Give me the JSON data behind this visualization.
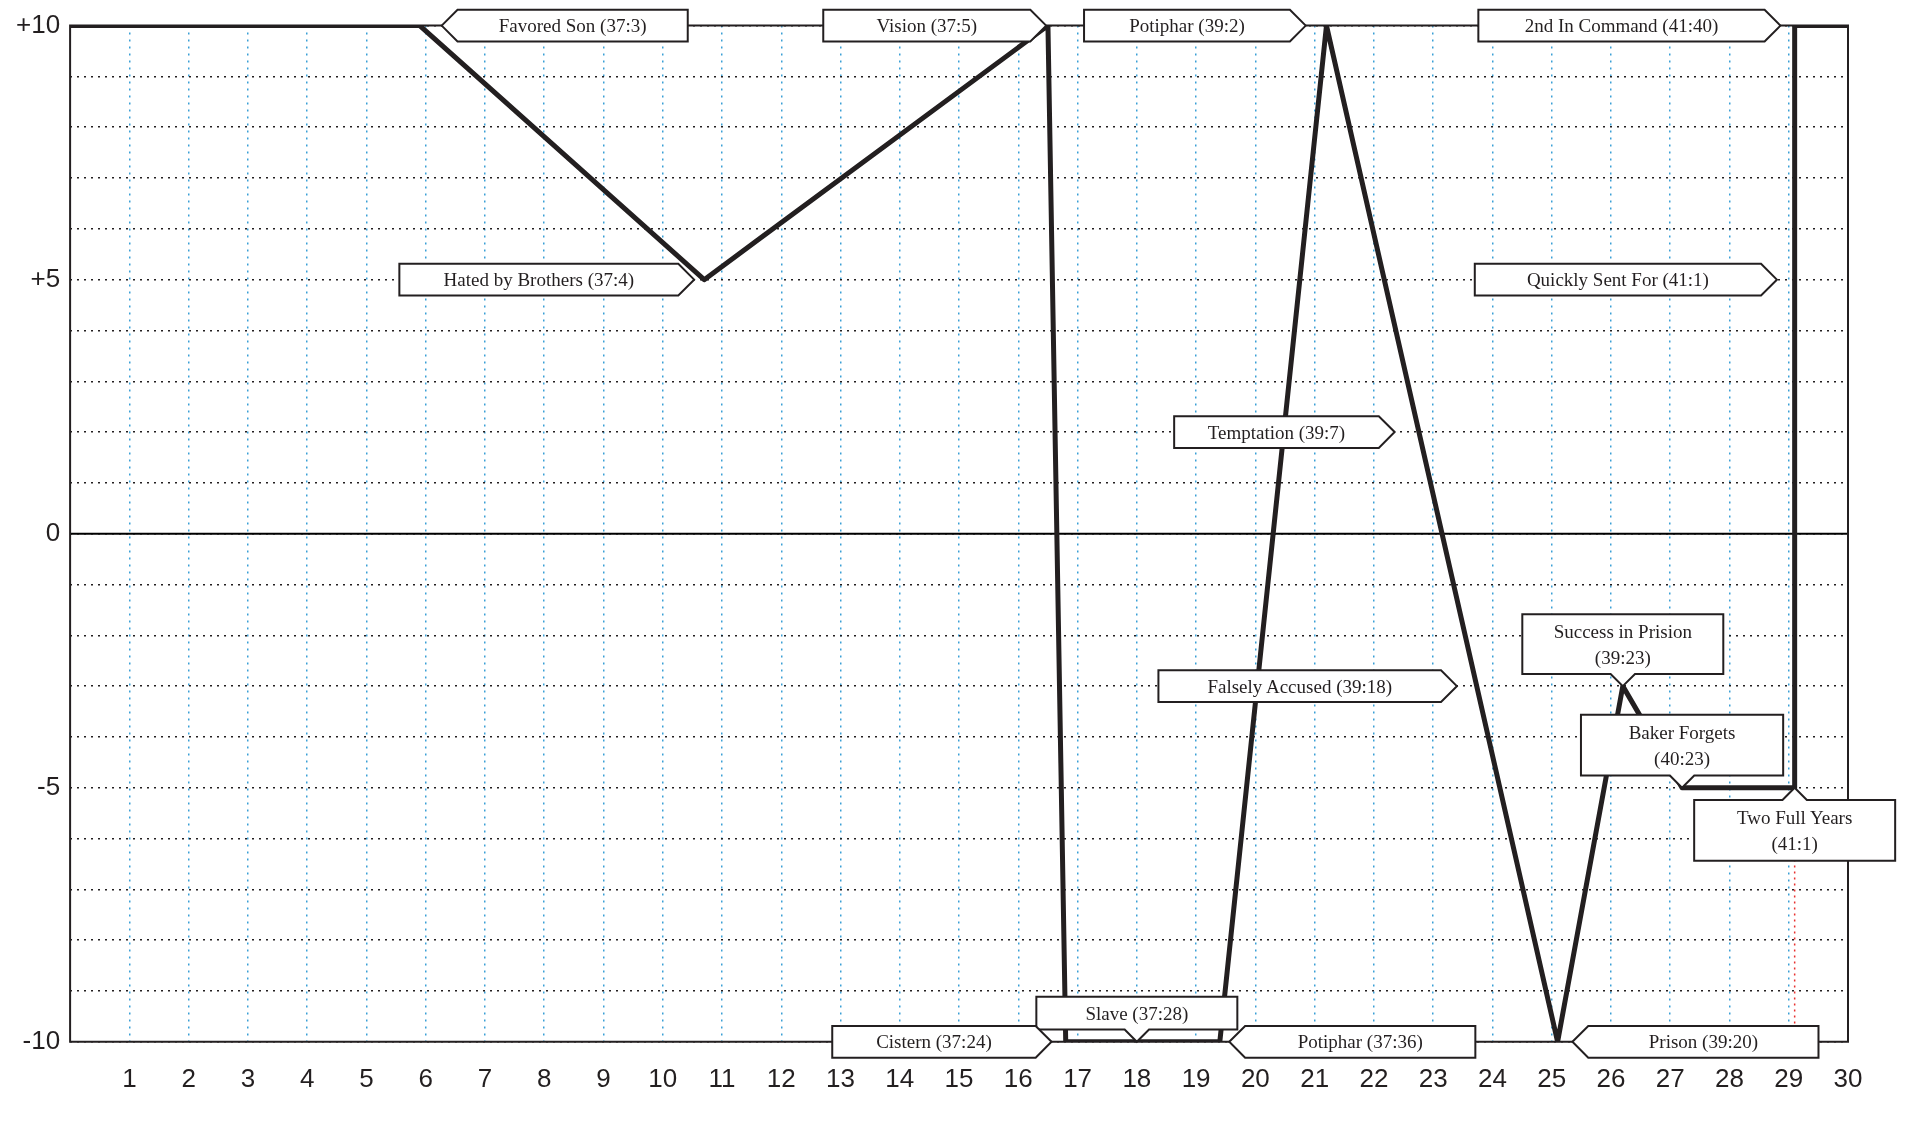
{
  "chart_data": {
    "type": "line",
    "x": [
      0,
      5.9,
      10.7,
      16.5,
      16.8,
      19.4,
      21.2,
      25.1,
      26.2,
      27.2,
      29.1,
      29.1,
      30
    ],
    "series": [
      {
        "color": "#231f20",
        "values": [
          10,
          10,
          5,
          10,
          -10,
          -10,
          10,
          -10,
          -3,
          -5,
          -5,
          10,
          10
        ]
      }
    ],
    "xlim": [
      0,
      30
    ],
    "ylim": [
      -10,
      10
    ],
    "xticks": [
      1,
      2,
      3,
      4,
      5,
      6,
      7,
      8,
      9,
      10,
      11,
      12,
      13,
      14,
      15,
      16,
      17,
      18,
      19,
      20,
      21,
      22,
      23,
      24,
      25,
      26,
      27,
      28,
      29,
      30
    ],
    "yticks": [
      {
        "value": -10,
        "label": "-10"
      },
      {
        "value": -9,
        "label": null
      },
      {
        "value": -8,
        "label": null
      },
      {
        "value": -7,
        "label": null
      },
      {
        "value": -6,
        "label": null
      },
      {
        "value": -5,
        "label": "-5"
      },
      {
        "value": -4,
        "label": null
      },
      {
        "value": -3,
        "label": null
      },
      {
        "value": -2,
        "label": null
      },
      {
        "value": -1,
        "label": null
      },
      {
        "value": 0,
        "label": "0"
      },
      {
        "value": 1,
        "label": null
      },
      {
        "value": 2,
        "label": null
      },
      {
        "value": 3,
        "label": null
      },
      {
        "value": 4,
        "label": null
      },
      {
        "value": 5,
        "label": "+5"
      },
      {
        "value": 6,
        "label": null
      },
      {
        "value": 7,
        "label": null
      },
      {
        "value": 8,
        "label": null
      },
      {
        "value": 9,
        "label": null
      },
      {
        "value": 10,
        "label": "+10"
      }
    ],
    "grid": true,
    "legend": false,
    "marker": "none",
    "line_style": "solid",
    "ref_lines": [
      {
        "axis": "y",
        "value": 0,
        "color": "#000000",
        "line_style": "solid"
      },
      {
        "axis": "x",
        "value": 29.1,
        "color": "#e8312f",
        "line_style": "dotted"
      }
    ],
    "annotations": [
      "Favored Son (37:3)",
      "Vision (37:5)",
      "Potiphar (39:2)",
      "2nd In Command (41:40)",
      "Hated by Brothers (37:4)",
      "Quickly Sent For (41:1)",
      "Temptation (39:7)",
      "Falsely Accused (39:18)",
      {
        "text": "Success in Prision\n(39:23)",
        "x": 26.2,
        "y": -3
      },
      {
        "text": "Baker Forgets\n(40:23)",
        "x": 27.2,
        "y": -5
      },
      {
        "text": "Two Full Years\n(41:1)",
        "x": 29.1,
        "y": -5
      },
      {
        "text": "Slave (37:28)",
        "x": 18,
        "y": -10
      },
      "Cistern (37:24)",
      "Potiphar (37:36)",
      "Prison (39:20)"
    ]
  }
}
